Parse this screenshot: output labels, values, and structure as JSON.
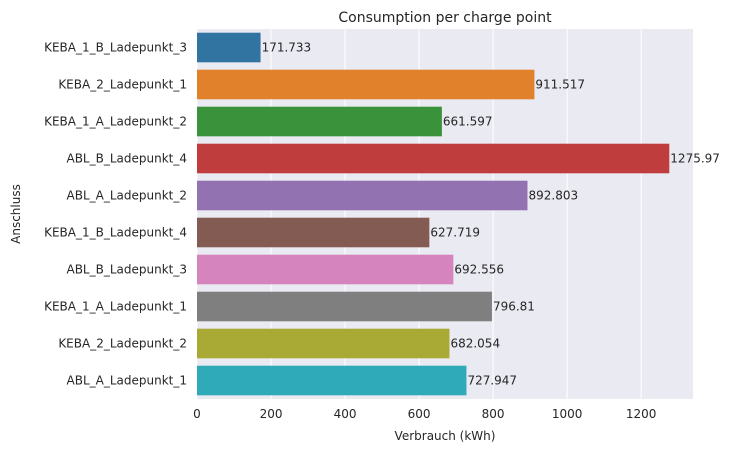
{
  "chart_data": {
    "type": "bar",
    "orientation": "horizontal",
    "title": "Consumption per charge point",
    "xlabel": "Verbrauch (kWh)",
    "ylabel": "Anschluss",
    "xlim": [
      0,
      1340
    ],
    "xticks": [
      0,
      200,
      400,
      600,
      800,
      1000,
      1200
    ],
    "grid": true,
    "background": "#eaeaf2",
    "categories": [
      "KEBA_1_B_Ladepunkt_3",
      "KEBA_2_Ladepunkt_1",
      "KEBA_1_A_Ladepunkt_2",
      "ABL_B_Ladepunkt_4",
      "ABL_A_Ladepunkt_2",
      "KEBA_1_B_Ladepunkt_4",
      "ABL_B_Ladepunkt_3",
      "KEBA_1_A_Ladepunkt_1",
      "KEBA_2_Ladepunkt_2",
      "ABL_A_Ladepunkt_1"
    ],
    "values": [
      171.733,
      911.517,
      661.597,
      1275.97,
      892.803,
      627.719,
      692.556,
      796.81,
      682.054,
      727.947
    ],
    "value_labels": [
      "171.733",
      "911.517",
      "661.597",
      "1275.97",
      "892.803",
      "627.719",
      "692.556",
      "796.81",
      "682.054",
      "727.947"
    ],
    "colors": [
      "#3274a1",
      "#e1812c",
      "#3a923a",
      "#c03d3e",
      "#9372b2",
      "#845b53",
      "#d684bd",
      "#7f7f7f",
      "#a9aa35",
      "#2eaab8"
    ]
  }
}
